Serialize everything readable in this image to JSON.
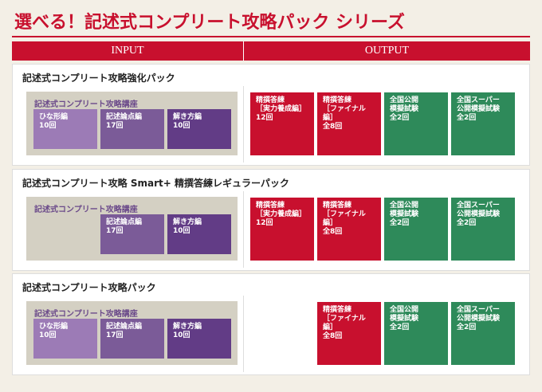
{
  "header": {
    "title": "選べる！記述式コンプリート攻略パック シリーズ",
    "columns": [
      "INPUT",
      "OUTPUT"
    ]
  },
  "sections": [
    {
      "title": "記述式コンプリート攻略強化パック",
      "input": {
        "label": "記述式コンプリート攻略講座",
        "courses": [
          [
            "ひな形編",
            "10回"
          ],
          [
            "記述論点編",
            "17回"
          ],
          [
            "解き方編",
            "10回"
          ]
        ]
      },
      "outputs": [
        [
          "精撰答練",
          "［実力養成編］",
          "12回"
        ],
        [
          "精撰答練",
          "［ファイナル編］",
          "全8回"
        ],
        [
          "全国公開",
          "模擬試験",
          "全2回"
        ],
        [
          "全国スーパー",
          "公開模擬試験",
          "全2回"
        ]
      ]
    },
    {
      "title": "記述式コンプリート攻略 Smart+ 精撰答練レギュラーパック",
      "input": {
        "label": "記述式コンプリート攻略講座",
        "courses": [
          null,
          [
            "記述論点編",
            "17回"
          ],
          [
            "解き方編",
            "10回"
          ]
        ]
      },
      "outputs": [
        [
          "精撰答練",
          "［実力養成編］",
          "12回"
        ],
        [
          "精撰答練",
          "［ファイナル編］",
          "全8回"
        ],
        [
          "全国公開",
          "模擬試験",
          "全2回"
        ],
        [
          "全国スーパー",
          "公開模擬試験",
          "全2回"
        ]
      ]
    },
    {
      "title": "記述式コンプリート攻略パック",
      "input": {
        "label": "記述式コンプリート攻略講座",
        "courses": [
          [
            "ひな形編",
            "10回"
          ],
          [
            "記述論点編",
            "17回"
          ],
          [
            "解き方編",
            "10回"
          ]
        ]
      },
      "outputs": [
        null,
        [
          "精撰答練",
          "［ファイナル編］",
          "全8回"
        ],
        [
          "全国公開",
          "模擬試験",
          "全2回"
        ],
        [
          "全国スーパー",
          "公開模擬試験",
          "全2回"
        ]
      ]
    }
  ]
}
